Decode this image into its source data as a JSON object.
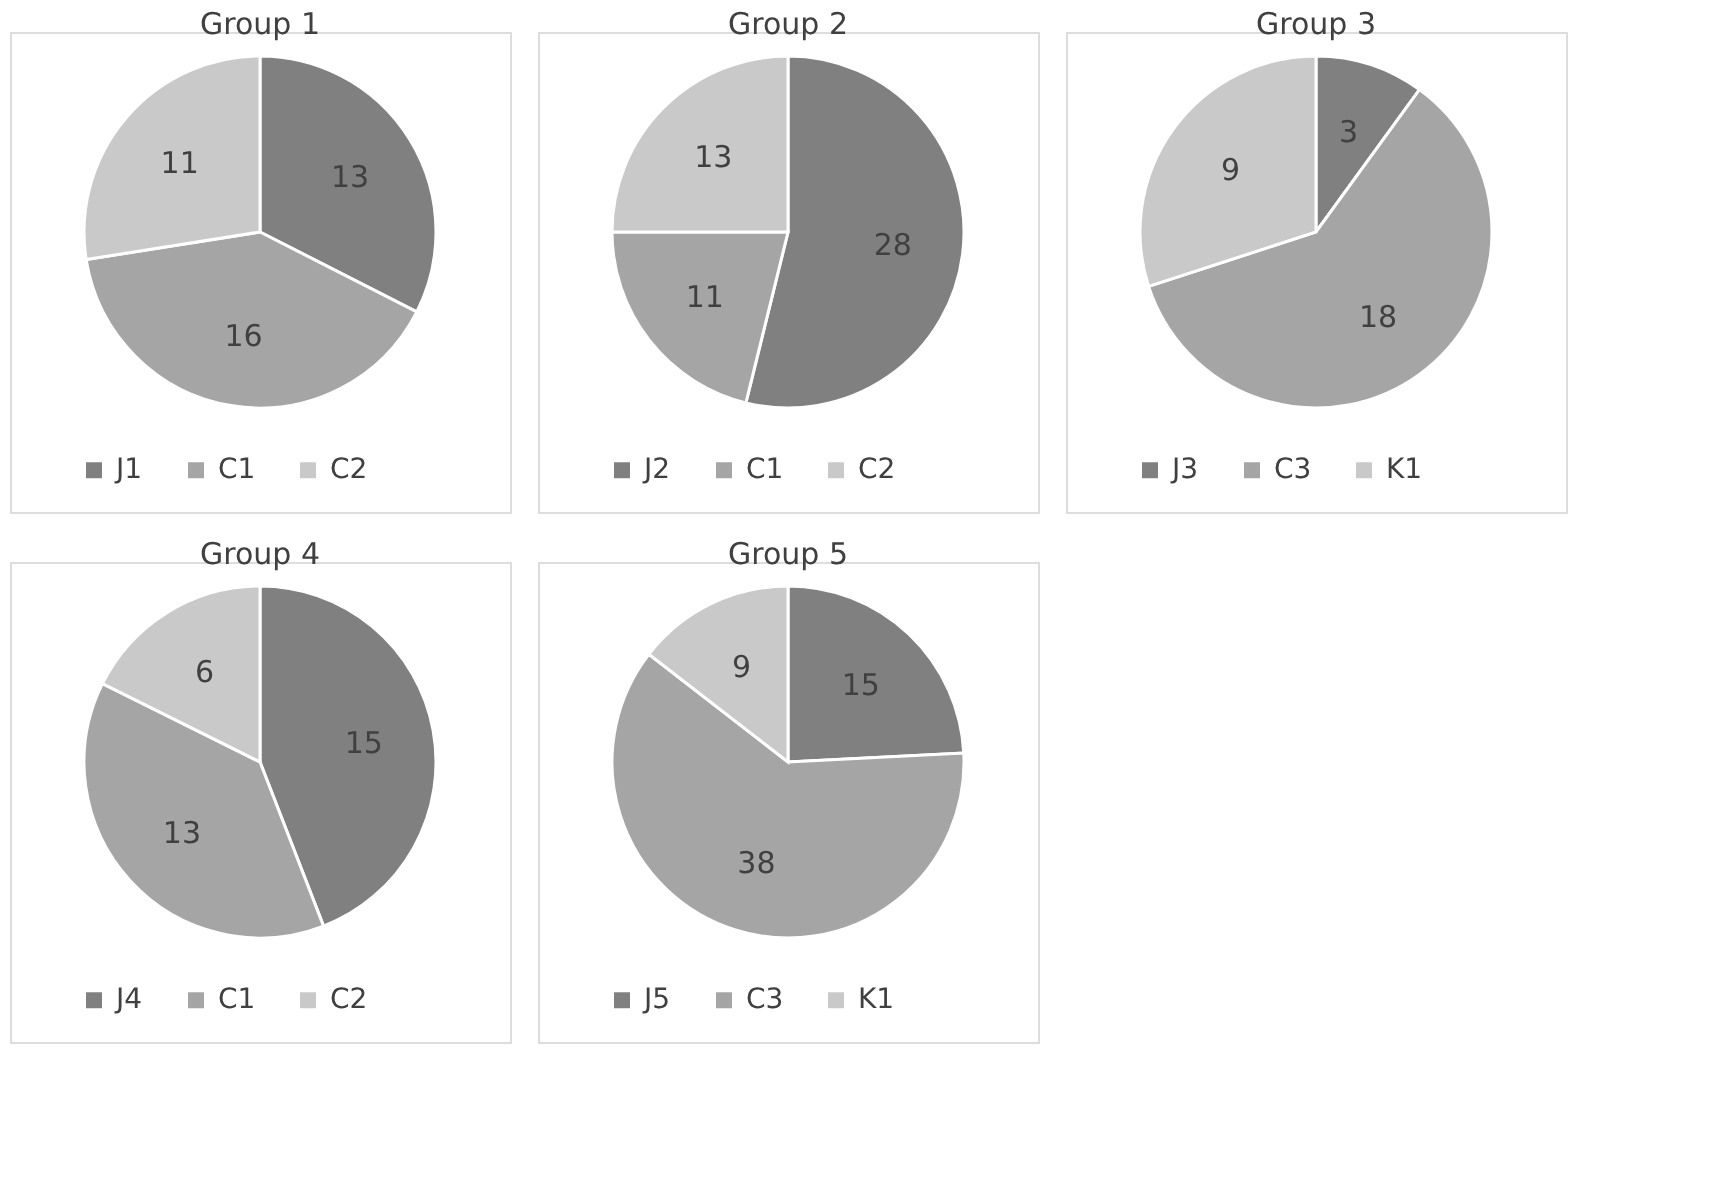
{
  "chart_data": [
    {
      "type": "pie",
      "title": "Group 1",
      "categories": [
        "J1",
        "C1",
        "C2"
      ],
      "values": [
        13,
        16,
        11
      ],
      "colors": [
        "#808080",
        "#a5a5a5",
        "#c9c9c9"
      ],
      "legend": "bottom",
      "data_labels": true
    },
    {
      "type": "pie",
      "title": "Group 2",
      "categories": [
        "J2",
        "C1",
        "C2"
      ],
      "values": [
        28,
        11,
        13
      ],
      "colors": [
        "#808080",
        "#a5a5a5",
        "#c9c9c9"
      ],
      "legend": "bottom",
      "data_labels": true
    },
    {
      "type": "pie",
      "title": "Group 3",
      "categories": [
        "J3",
        "C3",
        "K1"
      ],
      "values": [
        3,
        18,
        9
      ],
      "colors": [
        "#808080",
        "#a5a5a5",
        "#c9c9c9"
      ],
      "legend": "bottom",
      "data_labels": true
    },
    {
      "type": "pie",
      "title": "Group 4",
      "categories": [
        "J4",
        "C1",
        "C2"
      ],
      "values": [
        15,
        13,
        6
      ],
      "colors": [
        "#808080",
        "#a5a5a5",
        "#c9c9c9"
      ],
      "legend": "bottom",
      "data_labels": true
    },
    {
      "type": "pie",
      "title": "Group 5",
      "categories": [
        "J5",
        "C3",
        "K1"
      ],
      "values": [
        15,
        38,
        9
      ],
      "colors": [
        "#808080",
        "#a5a5a5",
        "#c9c9c9"
      ],
      "legend": "bottom",
      "data_labels": true
    }
  ]
}
